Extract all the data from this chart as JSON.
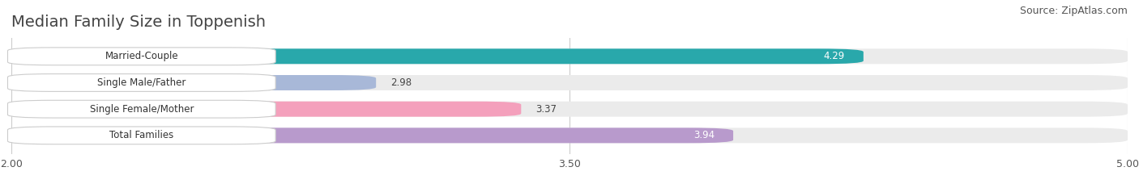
{
  "title": "Median Family Size in Toppenish",
  "source": "Source: ZipAtlas.com",
  "categories": [
    "Married-Couple",
    "Single Male/Father",
    "Single Female/Mother",
    "Total Families"
  ],
  "values": [
    4.29,
    2.98,
    3.37,
    3.94
  ],
  "bar_colors": [
    "#29A8AB",
    "#A8B8D8",
    "#F4A0BC",
    "#B89ACC"
  ],
  "value_inside": [
    true,
    false,
    false,
    true
  ],
  "xlim_min": 2.0,
  "xlim_max": 5.0,
  "xticks": [
    2.0,
    3.5,
    5.0
  ],
  "background_color": "#ffffff",
  "bar_bg_color": "#ebebeb",
  "title_fontsize": 14,
  "source_fontsize": 9,
  "label_fontsize": 8.5,
  "value_fontsize": 8.5,
  "bar_height": 0.58,
  "bar_gap": 0.42
}
